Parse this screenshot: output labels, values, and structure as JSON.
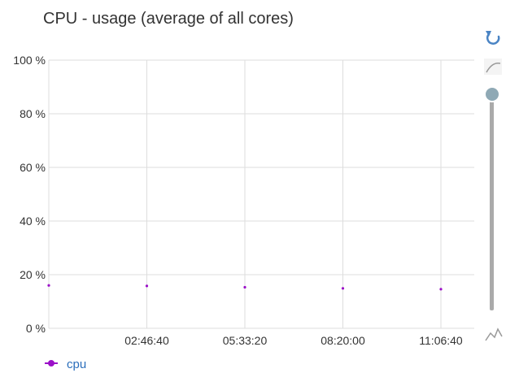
{
  "chart_data": {
    "type": "scatter",
    "title": "CPU - usage (average of all cores)",
    "x_start": "00:00:00",
    "x_tick_labels": [
      "02:46:40",
      "05:33:20",
      "08:20:00",
      "11:06:40"
    ],
    "y_tick_labels": [
      "0 %",
      "20 %",
      "40 %",
      "60 %",
      "80 %",
      "100 %"
    ],
    "ylim": [
      0,
      100
    ],
    "grid": true,
    "legend_position": "bottom-left",
    "series": [
      {
        "name": "cpu",
        "color": "#9b10c8",
        "x": [
          "00:00:00",
          "02:46:40",
          "05:33:20",
          "08:20:00",
          "11:06:40"
        ],
        "values": [
          16,
          15.8,
          15.3,
          14.9,
          14.6
        ]
      }
    ]
  },
  "controls": {
    "reset_icon": "reset-zoom-icon",
    "smooth_icon": "smooth-curve-icon",
    "raw_icon": "raw-data-icon",
    "slider_level": 1.0
  },
  "colors": {
    "grid": "#dddddd",
    "axis_text": "#333333",
    "legend_text": "#2a6ebb",
    "control_blue": "#4a84c4",
    "control_gray": "#999999",
    "slider_track": "#aaaaaa",
    "slider_knob": "#8fa9b5"
  }
}
